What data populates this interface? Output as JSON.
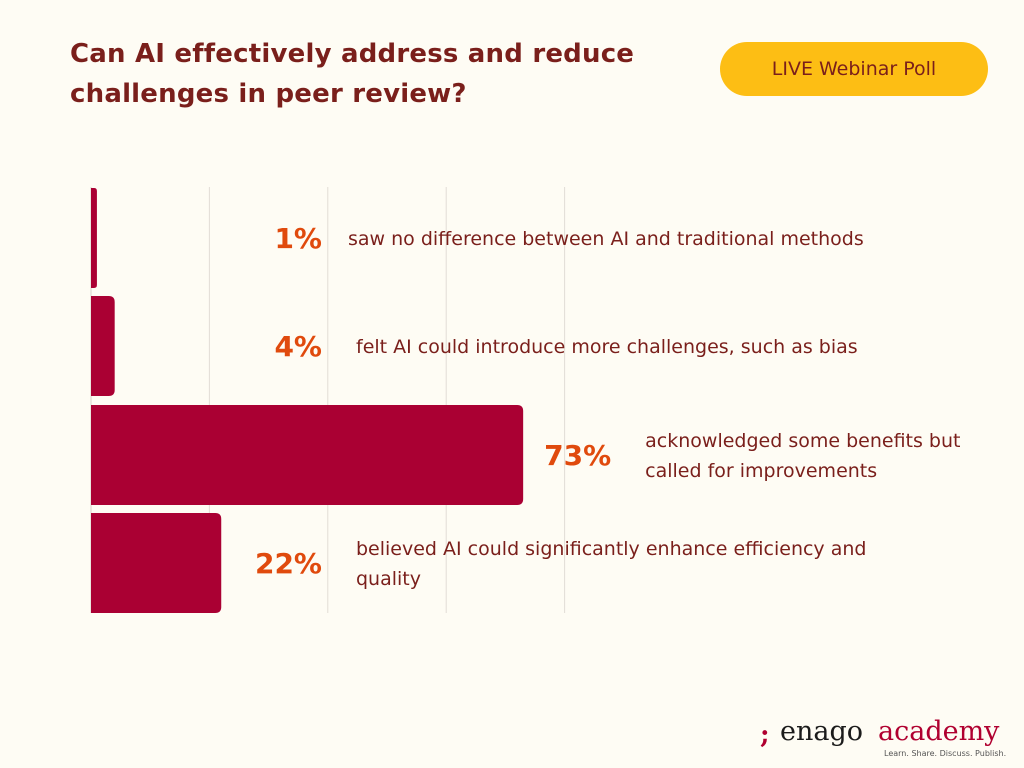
{
  "title": "Can AI effectively address and reduce challenges in peer review?",
  "badge": "LIVE Webinar Poll",
  "chart_data": {
    "type": "bar",
    "orientation": "horizontal",
    "categories": [
      "saw no difference between AI and traditional methods",
      "felt AI could introduce more challenges, such as bias",
      "acknowledged some benefits but called for improvements",
      "believed AI could significantly enhance efficiency and quality"
    ],
    "values": [
      1,
      4,
      73,
      22
    ],
    "value_labels": [
      "1%",
      "4%",
      "73%",
      "22%"
    ],
    "descriptions": [
      [
        "saw no difference between AI and traditional methods"
      ],
      [
        "felt AI could introduce more challenges, such as bias"
      ],
      [
        "acknowledged some benefits but",
        "called for improvements"
      ],
      [
        "believed AI could significantly enhance efficiency and",
        "quality"
      ]
    ],
    "xlim": [
      0,
      100
    ],
    "grid": true,
    "bar_color": "#aa0033",
    "label_color": "#e04a0d",
    "text_color": "#7a1f1b"
  },
  "logo": {
    "mark": ";",
    "brand": "enago",
    "academy": "academy",
    "tagline": "Learn. Share. Discuss. Publish."
  }
}
